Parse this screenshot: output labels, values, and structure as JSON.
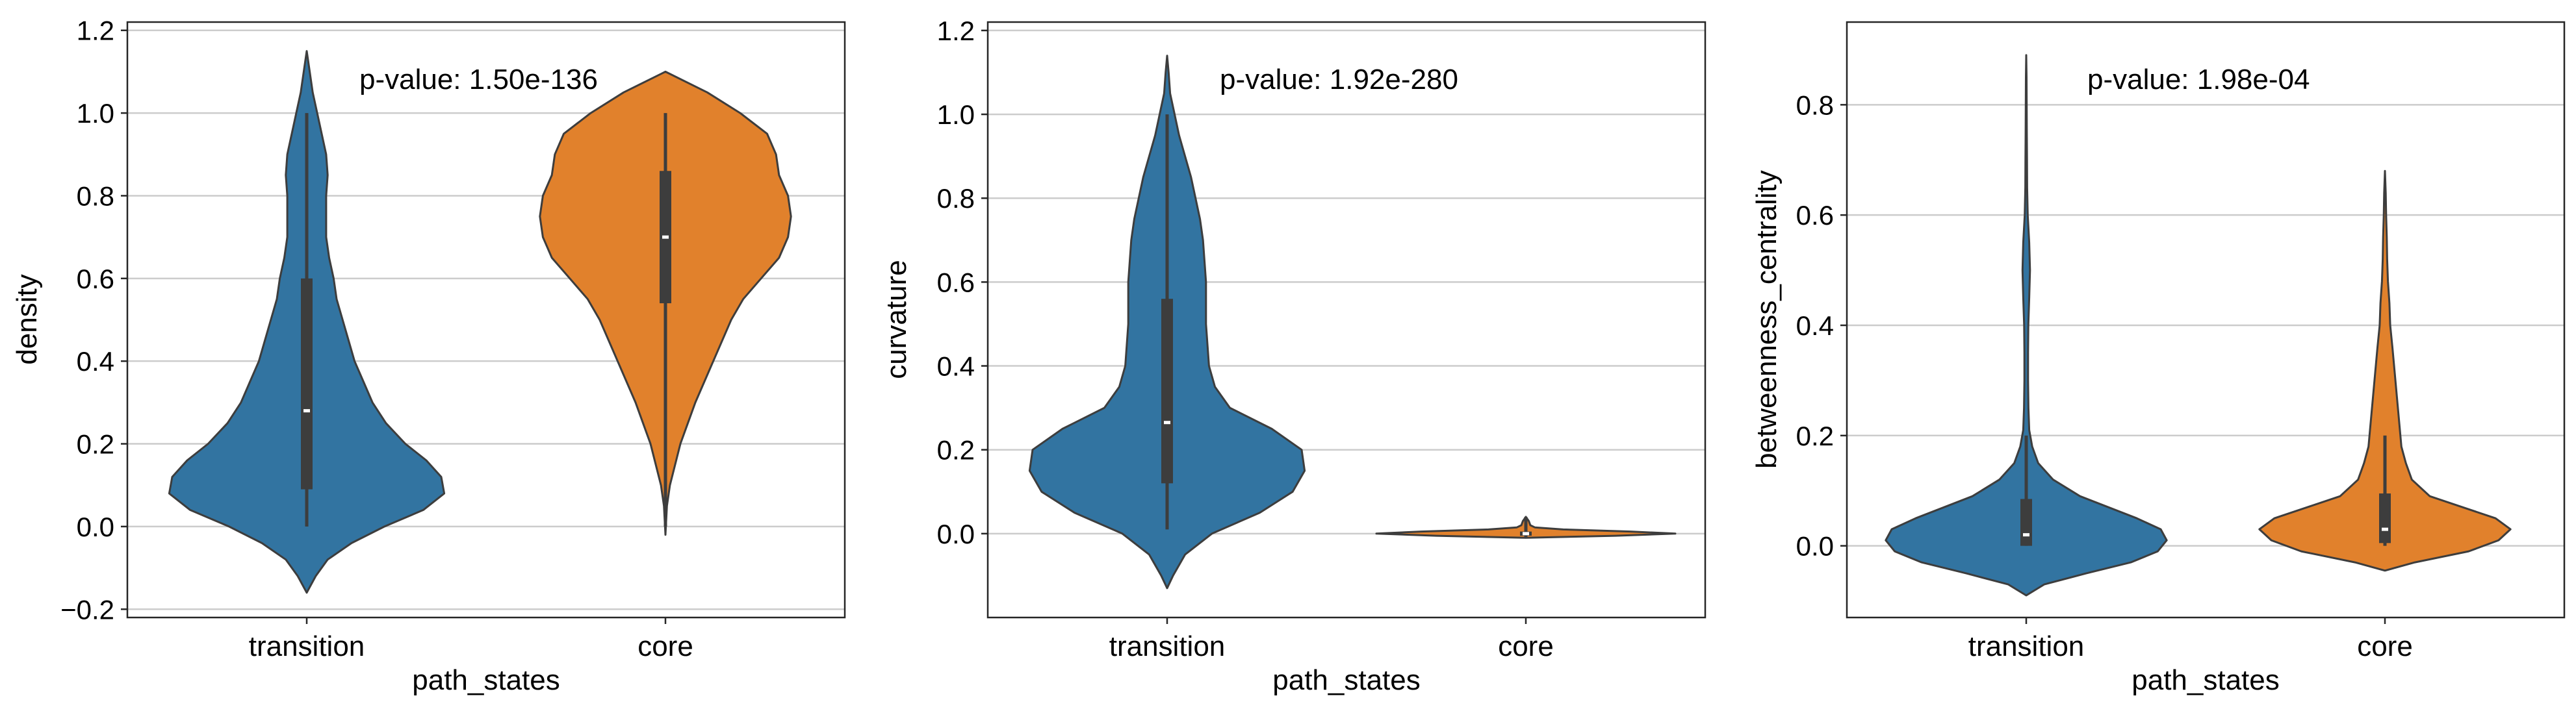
{
  "colors": {
    "transition": "#3274a1",
    "core": "#e1812c",
    "outline": "#3d3d3d",
    "grid": "#cccccc",
    "box": "#3d3d3d",
    "median": "#ffffff"
  },
  "chart_data": [
    {
      "type": "violin",
      "title": "",
      "annotation": "p-value: 1.50e-136",
      "xlabel": "path_states",
      "ylabel": "density",
      "categories": [
        "transition",
        "core"
      ],
      "ylim": [
        -0.22,
        1.22
      ],
      "yticks": [
        -0.2,
        0.0,
        0.2,
        0.4,
        0.6,
        0.8,
        1.0,
        1.2
      ],
      "ytick_labels": [
        "−0.2",
        "0.0",
        "0.2",
        "0.4",
        "0.6",
        "0.8",
        "1.0",
        "1.2"
      ],
      "grid": "horizontal",
      "violins": [
        {
          "category": "transition",
          "stats": {
            "min": 0.0,
            "q1": 0.09,
            "median": 0.28,
            "q3": 0.6,
            "max": 1.0
          },
          "profile": [
            [
              -0.16,
              0.0
            ],
            [
              -0.12,
              0.06
            ],
            [
              -0.08,
              0.14
            ],
            [
              -0.04,
              0.3
            ],
            [
              0.0,
              0.52
            ],
            [
              0.04,
              0.78
            ],
            [
              0.08,
              0.92
            ],
            [
              0.12,
              0.9
            ],
            [
              0.16,
              0.8
            ],
            [
              0.2,
              0.66
            ],
            [
              0.25,
              0.53
            ],
            [
              0.3,
              0.44
            ],
            [
              0.35,
              0.38
            ],
            [
              0.4,
              0.32
            ],
            [
              0.45,
              0.28
            ],
            [
              0.5,
              0.24
            ],
            [
              0.55,
              0.2
            ],
            [
              0.6,
              0.18
            ],
            [
              0.65,
              0.15
            ],
            [
              0.7,
              0.13
            ],
            [
              0.75,
              0.13
            ],
            [
              0.8,
              0.13
            ],
            [
              0.85,
              0.14
            ],
            [
              0.9,
              0.13
            ],
            [
              0.95,
              0.1
            ],
            [
              1.0,
              0.07
            ],
            [
              1.05,
              0.04
            ],
            [
              1.1,
              0.02
            ],
            [
              1.15,
              0.0
            ]
          ]
        },
        {
          "category": "core",
          "stats": {
            "min": 0.0,
            "q1": 0.54,
            "median": 0.7,
            "q3": 0.86,
            "max": 1.0
          },
          "profile": [
            [
              -0.02,
              0.0
            ],
            [
              0.05,
              0.01
            ],
            [
              0.1,
              0.03
            ],
            [
              0.2,
              0.1
            ],
            [
              0.3,
              0.2
            ],
            [
              0.4,
              0.32
            ],
            [
              0.5,
              0.44
            ],
            [
              0.55,
              0.52
            ],
            [
              0.6,
              0.64
            ],
            [
              0.65,
              0.76
            ],
            [
              0.7,
              0.82
            ],
            [
              0.75,
              0.84
            ],
            [
              0.8,
              0.82
            ],
            [
              0.85,
              0.76
            ],
            [
              0.9,
              0.74
            ],
            [
              0.95,
              0.68
            ],
            [
              1.0,
              0.5
            ],
            [
              1.05,
              0.28
            ],
            [
              1.1,
              0.0
            ]
          ]
        }
      ]
    },
    {
      "type": "violin",
      "title": "",
      "annotation": "p-value: 1.92e-280",
      "xlabel": "path_states",
      "ylabel": "curvature",
      "categories": [
        "transition",
        "core"
      ],
      "ylim": [
        -0.2,
        1.22
      ],
      "yticks": [
        0.0,
        0.2,
        0.4,
        0.6,
        0.8,
        1.0,
        1.2
      ],
      "ytick_labels": [
        "0.0",
        "0.2",
        "0.4",
        "0.6",
        "0.8",
        "1.0",
        "1.2"
      ],
      "grid": "horizontal",
      "violins": [
        {
          "category": "transition",
          "stats": {
            "min": 0.01,
            "q1": 0.12,
            "median": 0.265,
            "q3": 0.56,
            "max": 1.0
          },
          "profile": [
            [
              -0.13,
              0.0
            ],
            [
              -0.1,
              0.04
            ],
            [
              -0.05,
              0.12
            ],
            [
              0.0,
              0.3
            ],
            [
              0.05,
              0.62
            ],
            [
              0.1,
              0.84
            ],
            [
              0.15,
              0.92
            ],
            [
              0.2,
              0.9
            ],
            [
              0.25,
              0.7
            ],
            [
              0.3,
              0.42
            ],
            [
              0.35,
              0.32
            ],
            [
              0.4,
              0.28
            ],
            [
              0.45,
              0.27
            ],
            [
              0.5,
              0.26
            ],
            [
              0.55,
              0.26
            ],
            [
              0.6,
              0.26
            ],
            [
              0.65,
              0.25
            ],
            [
              0.7,
              0.24
            ],
            [
              0.75,
              0.22
            ],
            [
              0.8,
              0.19
            ],
            [
              0.85,
              0.16
            ],
            [
              0.9,
              0.12
            ],
            [
              0.95,
              0.08
            ],
            [
              1.0,
              0.05
            ],
            [
              1.05,
              0.02
            ],
            [
              1.1,
              0.01
            ],
            [
              1.14,
              0.0
            ]
          ]
        },
        {
          "category": "core",
          "stats": {
            "min": -0.01,
            "q1": -0.005,
            "median": 0.0,
            "q3": 0.005,
            "max": 0.04
          },
          "profile": [
            [
              -0.01,
              0.0
            ],
            [
              -0.005,
              0.6
            ],
            [
              0.0,
              1.0
            ],
            [
              0.005,
              0.7
            ],
            [
              0.01,
              0.25
            ],
            [
              0.015,
              0.06
            ],
            [
              0.02,
              0.03
            ],
            [
              0.03,
              0.02
            ],
            [
              0.04,
              0.0
            ]
          ]
        }
      ]
    },
    {
      "type": "violin",
      "title": "",
      "annotation": "p-value: 1.98e-04",
      "xlabel": "path_states",
      "ylabel": "betweenness_centrality",
      "categories": [
        "transition",
        "core"
      ],
      "ylim": [
        -0.13,
        0.95
      ],
      "yticks": [
        0.0,
        0.2,
        0.4,
        0.6,
        0.8
      ],
      "ytick_labels": [
        "0.0",
        "0.2",
        "0.4",
        "0.6",
        "0.8"
      ],
      "grid": "horizontal",
      "violins": [
        {
          "category": "transition",
          "stats": {
            "min": 0.0,
            "q1": 0.0,
            "median": 0.02,
            "q3": 0.085,
            "max": 0.2
          },
          "profile": [
            [
              -0.09,
              0.0
            ],
            [
              -0.07,
              0.12
            ],
            [
              -0.05,
              0.4
            ],
            [
              -0.03,
              0.7
            ],
            [
              -0.01,
              0.88
            ],
            [
              0.01,
              0.94
            ],
            [
              0.03,
              0.9
            ],
            [
              0.05,
              0.74
            ],
            [
              0.07,
              0.55
            ],
            [
              0.09,
              0.36
            ],
            [
              0.12,
              0.18
            ],
            [
              0.15,
              0.08
            ],
            [
              0.18,
              0.04
            ],
            [
              0.21,
              0.02
            ],
            [
              0.25,
              0.015
            ],
            [
              0.3,
              0.012
            ],
            [
              0.35,
              0.012
            ],
            [
              0.4,
              0.014
            ],
            [
              0.45,
              0.02
            ],
            [
              0.5,
              0.025
            ],
            [
              0.55,
              0.02
            ],
            [
              0.6,
              0.01
            ],
            [
              0.65,
              0.006
            ],
            [
              0.7,
              0.005
            ],
            [
              0.75,
              0.004
            ],
            [
              0.8,
              0.003
            ],
            [
              0.85,
              0.002
            ],
            [
              0.89,
              0.0
            ]
          ]
        },
        {
          "category": "core",
          "stats": {
            "min": 0.0,
            "q1": 0.005,
            "median": 0.03,
            "q3": 0.095,
            "max": 0.2
          },
          "profile": [
            [
              -0.045,
              0.0
            ],
            [
              -0.03,
              0.2
            ],
            [
              -0.01,
              0.56
            ],
            [
              0.01,
              0.76
            ],
            [
              0.03,
              0.84
            ],
            [
              0.05,
              0.74
            ],
            [
              0.07,
              0.52
            ],
            [
              0.09,
              0.3
            ],
            [
              0.12,
              0.18
            ],
            [
              0.15,
              0.14
            ],
            [
              0.18,
              0.11
            ],
            [
              0.21,
              0.1
            ],
            [
              0.24,
              0.09
            ],
            [
              0.27,
              0.08
            ],
            [
              0.3,
              0.07
            ],
            [
              0.33,
              0.06
            ],
            [
              0.36,
              0.05
            ],
            [
              0.4,
              0.035
            ],
            [
              0.44,
              0.03
            ],
            [
              0.48,
              0.02
            ],
            [
              0.52,
              0.015
            ],
            [
              0.56,
              0.012
            ],
            [
              0.6,
              0.008
            ],
            [
              0.64,
              0.005
            ],
            [
              0.68,
              0.0
            ]
          ]
        }
      ]
    }
  ]
}
